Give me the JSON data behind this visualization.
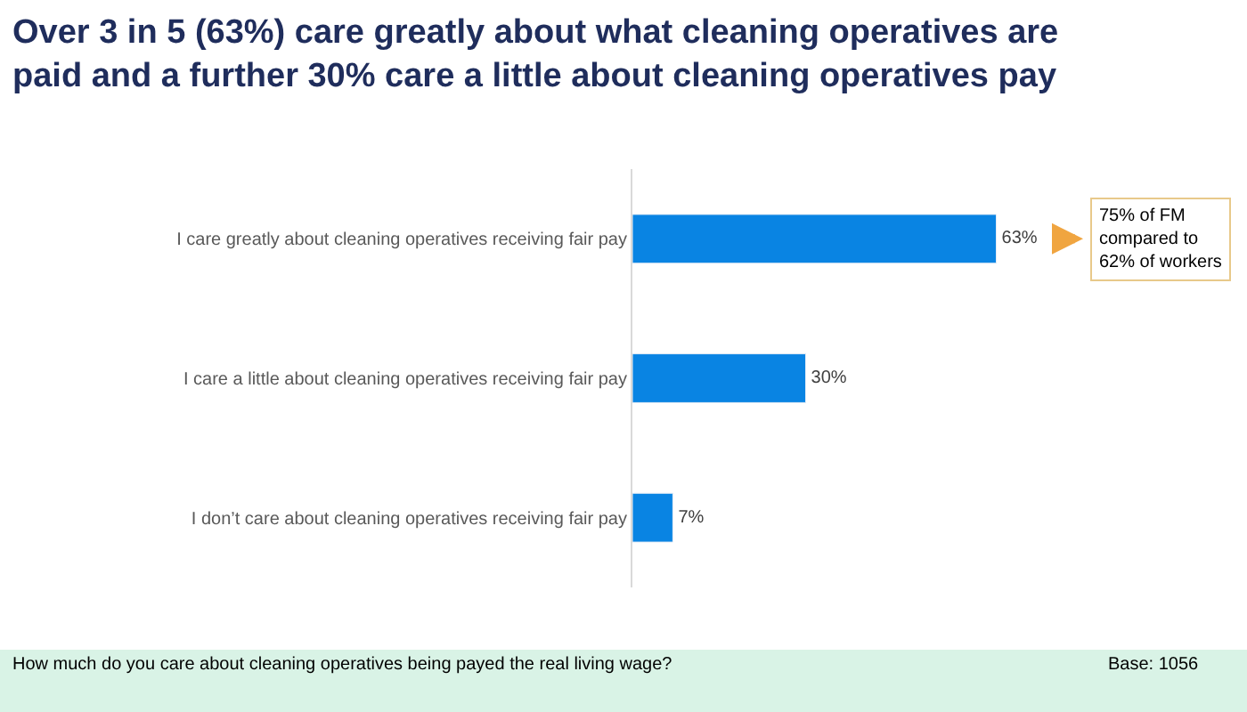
{
  "chart_data": {
    "type": "bar",
    "orientation": "horizontal",
    "title": "Over 3 in 5 (63%) care greatly about what cleaning operatives are paid and a further 30% care a little about cleaning operatives pay",
    "categories": [
      "I care greatly about cleaning operatives receiving fair pay",
      "I care a little about cleaning operatives receiving fair pay",
      "I don’t care about cleaning operatives receiving fair pay"
    ],
    "values": [
      63,
      30,
      7
    ],
    "color": "#0984e3",
    "value_labels": [
      "63%",
      "30%",
      "7%"
    ],
    "annotations": [
      "75% of FM compared to 62% of workers",
      "How much do you care about cleaning operatives being payed the real living wage?",
      "Base: 1056"
    ],
    "legend": false
  }
}
